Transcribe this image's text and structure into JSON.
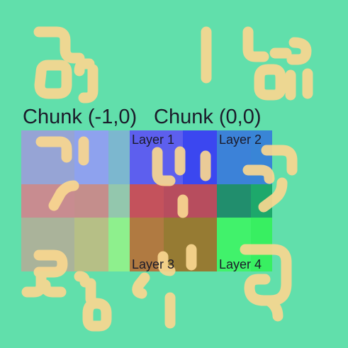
{
  "background_color": "#61dfab",
  "pipe_color": "#f9d790",
  "chunks": [
    {
      "label": "Chunk (-1,0)"
    },
    {
      "label": "Chunk (0,0)"
    }
  ],
  "layers": [
    {
      "label": "Layer 1"
    },
    {
      "label": "Layer 2"
    },
    {
      "label": "Layer 3"
    },
    {
      "label": "Layer 4"
    }
  ],
  "tile_colors": {
    "row1": [
      "#96a4d5",
      "#8ea2ee",
      "#7cb7cf",
      "#5d5fee",
      "#3b47f0",
      "#3c82d8",
      "#3985d6"
    ],
    "row2": [
      "#c88c90",
      "#c48e8c",
      "#93c7ad",
      "#c4525c",
      "#b74d5e",
      "#218e6d",
      "#1da86b"
    ],
    "row3": [
      "#aab39a",
      "#b6bf86",
      "#8ef08d",
      "#b07a41",
      "#967b33",
      "#41f26b",
      "#38ef61"
    ]
  }
}
